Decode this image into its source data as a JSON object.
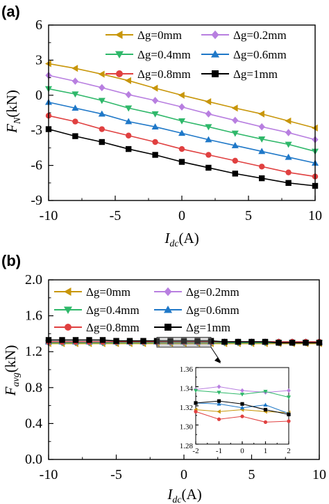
{
  "chart_data": [
    {
      "panel": "(a)",
      "type": "line",
      "xlabel": "I_dc(A)",
      "ylabel": "F_N(kN)",
      "xlim": [
        -10,
        10
      ],
      "ylim": [
        -9,
        6
      ],
      "xticks": [
        "-10",
        "-5",
        "0",
        "5",
        "10"
      ],
      "yticks": [
        "-9",
        "-6",
        "-3",
        "0",
        "3",
        "6"
      ],
      "legend_position": "top-right",
      "x": [
        -10,
        -8,
        -6,
        -4,
        -2,
        0,
        2,
        4,
        6,
        8,
        10
      ],
      "series": [
        {
          "name": "Δg=0mm",
          "color": "#c8960a",
          "marker": "triangle-left",
          "values": [
            2.7,
            2.3,
            1.8,
            1.25,
            0.6,
            0.0,
            -0.55,
            -1.1,
            -1.6,
            -2.2,
            -2.8
          ]
        },
        {
          "name": "Δg=0.2mm",
          "color": "#b87fe0",
          "marker": "diamond",
          "values": [
            1.7,
            1.2,
            0.65,
            0.05,
            -0.45,
            -1.0,
            -1.6,
            -2.15,
            -2.7,
            -3.2,
            -3.8
          ]
        },
        {
          "name": "Δg=0.4mm",
          "color": "#2fb86a",
          "marker": "triangle-down",
          "values": [
            0.55,
            0.1,
            -0.45,
            -1.1,
            -1.6,
            -2.2,
            -2.7,
            -3.25,
            -3.75,
            -4.2,
            -4.8
          ]
        },
        {
          "name": "Δg=0.6mm",
          "color": "#1f78c8",
          "marker": "triangle-up",
          "values": [
            -0.6,
            -1.1,
            -1.6,
            -2.25,
            -2.7,
            -3.25,
            -3.8,
            -4.3,
            -4.8,
            -5.3,
            -5.8
          ]
        },
        {
          "name": "Δg=0.8mm",
          "color": "#e04040",
          "marker": "circle",
          "values": [
            -1.75,
            -2.25,
            -2.9,
            -3.45,
            -4.0,
            -4.6,
            -5.1,
            -5.6,
            -6.1,
            -6.6,
            -6.95
          ]
        },
        {
          "name": "Δg=1mm",
          "color": "#000000",
          "marker": "square",
          "values": [
            -2.9,
            -3.5,
            -4.0,
            -4.6,
            -5.1,
            -5.7,
            -6.2,
            -6.7,
            -7.1,
            -7.5,
            -7.75
          ]
        }
      ]
    },
    {
      "panel": "(b)",
      "type": "line",
      "xlabel": "I_dc(A)",
      "ylabel": "F_avg(kN)",
      "xlim": [
        -10,
        10
      ],
      "ylim": [
        0.0,
        2.0
      ],
      "xticks": [
        "-10",
        "-5",
        "0",
        "5",
        "10"
      ],
      "yticks": [
        "0.0",
        "0.4",
        "0.8",
        "1.2",
        "1.6",
        "2.0"
      ],
      "legend_position": "top-left",
      "x": [
        -10,
        -9,
        -8,
        -7,
        -6,
        -5,
        -4,
        -3,
        -2,
        -1,
        0,
        1,
        2,
        3,
        4,
        5,
        6,
        7,
        8,
        9,
        10
      ],
      "series": [
        {
          "name": "Δg=0mm",
          "color": "#c8960a",
          "marker": "triangle-left",
          "values": [
            1.29,
            1.29,
            1.29,
            1.29,
            1.29,
            1.29,
            1.29,
            1.29,
            1.29,
            1.29,
            1.29,
            1.29,
            1.29,
            1.29,
            1.29,
            1.29,
            1.29,
            1.29,
            1.29,
            1.29,
            1.29
          ]
        },
        {
          "name": "Δg=0.2mm",
          "color": "#b87fe0",
          "marker": "diamond",
          "values": [
            1.3,
            1.3,
            1.3,
            1.3,
            1.3,
            1.3,
            1.3,
            1.3,
            1.3,
            1.3,
            1.3,
            1.3,
            1.3,
            1.3,
            1.3,
            1.3,
            1.3,
            1.3,
            1.3,
            1.3,
            1.3
          ]
        },
        {
          "name": "Δg=0.4mm",
          "color": "#2fb86a",
          "marker": "triangle-down",
          "values": [
            1.3,
            1.3,
            1.3,
            1.3,
            1.3,
            1.3,
            1.3,
            1.3,
            1.3,
            1.3,
            1.3,
            1.3,
            1.3,
            1.3,
            1.3,
            1.3,
            1.3,
            1.3,
            1.3,
            1.3,
            1.3
          ]
        },
        {
          "name": "Δg=0.6mm",
          "color": "#1f78c8",
          "marker": "triangle-up",
          "values": [
            1.31,
            1.31,
            1.31,
            1.31,
            1.31,
            1.31,
            1.31,
            1.31,
            1.31,
            1.31,
            1.31,
            1.31,
            1.31,
            1.31,
            1.31,
            1.31,
            1.31,
            1.31,
            1.31,
            1.31,
            1.31
          ]
        },
        {
          "name": "Δg=0.8mm",
          "color": "#e04040",
          "marker": "circle",
          "values": [
            1.31,
            1.31,
            1.31,
            1.31,
            1.31,
            1.31,
            1.31,
            1.31,
            1.31,
            1.31,
            1.31,
            1.31,
            1.31,
            1.31,
            1.31,
            1.31,
            1.31,
            1.31,
            1.31,
            1.31,
            1.31
          ]
        },
        {
          "name": "Δg=1mm",
          "color": "#000000",
          "marker": "square",
          "values": [
            1.33,
            1.33,
            1.33,
            1.33,
            1.33,
            1.32,
            1.32,
            1.32,
            1.32,
            1.32,
            1.32,
            1.32,
            1.32,
            1.31,
            1.31,
            1.31,
            1.31,
            1.3,
            1.3,
            1.3,
            1.3
          ]
        }
      ],
      "inset": {
        "xlim": [
          -2,
          2
        ],
        "ylim": [
          1.28,
          1.36
        ],
        "xticks": [
          "-2",
          "-1",
          "0",
          "1",
          "2"
        ],
        "yticks": [
          "1.28",
          "1.30",
          "1.32",
          "1.34",
          "1.36"
        ],
        "x": [
          -2,
          -1,
          0,
          1,
          2
        ],
        "series": [
          {
            "name": "Δg=0mm",
            "color": "#c8960a",
            "marker": "triangle-left",
            "values": [
              1.316,
              1.314,
              1.316,
              1.314,
              1.313
            ]
          },
          {
            "name": "Δg=0.2mm",
            "color": "#b87fe0",
            "marker": "diamond",
            "values": [
              1.337,
              1.34,
              1.336,
              1.334,
              1.336
            ]
          },
          {
            "name": "Δg=0.4mm",
            "color": "#2fb86a",
            "marker": "triangle-down",
            "values": [
              1.336,
              1.334,
              1.332,
              1.335,
              1.329
            ]
          },
          {
            "name": "Δg=0.6mm",
            "color": "#1f78c8",
            "marker": "triangle-up",
            "values": [
              1.323,
              1.322,
              1.318,
              1.321,
              1.312
            ]
          },
          {
            "name": "Δg=0.8mm",
            "color": "#e04040",
            "marker": "circle",
            "values": [
              1.314,
              1.306,
              1.309,
              1.303,
              1.304
            ]
          },
          {
            "name": "Δg=1mm",
            "color": "#000000",
            "marker": "square",
            "values": [
              1.323,
              1.325,
              1.322,
              1.316,
              1.311
            ]
          }
        ]
      }
    }
  ]
}
